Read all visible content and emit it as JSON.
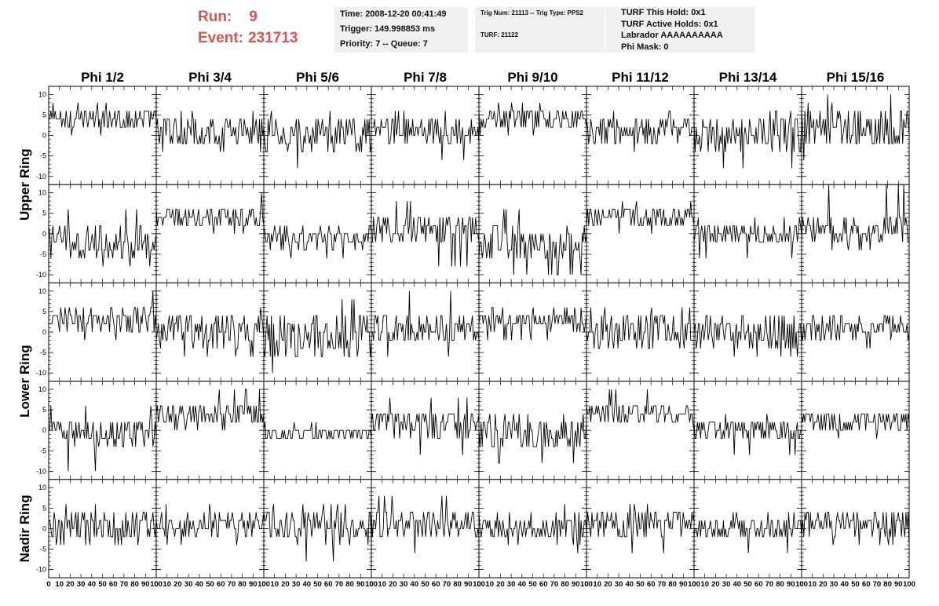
{
  "run_info": {
    "run_label": "Run:",
    "run_value": "9",
    "event_label": "Event:",
    "event_value": "231713",
    "color": "#d9534f"
  },
  "time_box": {
    "time": "Time: 2008-12-20 00:41:49",
    "trigger": "Trigger: 149.998853 ms",
    "priority": "Priority: 7 -- Queue: 7"
  },
  "trig_box": {
    "trig_line": "Trig Num: 21113 -- Trig Type: PPS2",
    "turf_line": "TURF: 21122"
  },
  "turf_box": {
    "this_hold": "TURF This Hold: 0x1",
    "active_holds": "TURF Active Holds: 0x1",
    "labrador": "Labrador AAAAAAAAAA",
    "phi_mask": "Phi Mask: 0"
  },
  "chart_data": {
    "type": "line",
    "description_rows": [
      "Upper Ring",
      "Upper Ring",
      "Lower Ring",
      "Lower Ring",
      "Nadir Ring"
    ],
    "ring_labels": [
      "Upper Ring",
      "Lower Ring",
      "Nadir Ring"
    ],
    "phi_labels": [
      "Phi 1/2",
      "Phi 3/4",
      "Phi 5/6",
      "Phi 7/8",
      "Phi 9/10",
      "Phi 11/12",
      "Phi 13/14",
      "Phi 15/16"
    ],
    "xlim": [
      0,
      100
    ],
    "ylim": [
      -12,
      12
    ],
    "x_ticks": [
      "0",
      "10",
      "20",
      "30",
      "40",
      "50",
      "60",
      "70",
      "80",
      "90",
      "100"
    ],
    "y_ticks": [
      "-10",
      "-5",
      "0",
      "5",
      "10"
    ],
    "samples_per_panel": 100,
    "series": [
      {
        "row": 0,
        "col": 0,
        "baseline": 4,
        "spread": 2,
        "min": 0,
        "max": 8
      },
      {
        "row": 0,
        "col": 1,
        "baseline": 1,
        "spread": 3,
        "min": -4,
        "max": 6
      },
      {
        "row": 0,
        "col": 2,
        "baseline": 0,
        "spread": 3.5,
        "min": -8,
        "max": 6
      },
      {
        "row": 0,
        "col": 3,
        "baseline": 1,
        "spread": 2.5,
        "min": -6,
        "max": 6
      },
      {
        "row": 0,
        "col": 4,
        "baseline": 4,
        "spread": 2,
        "min": 0,
        "max": 8
      },
      {
        "row": 0,
        "col": 5,
        "baseline": 1,
        "spread": 2.5,
        "min": -4,
        "max": 6
      },
      {
        "row": 0,
        "col": 6,
        "baseline": 0,
        "spread": 3.5,
        "min": -8,
        "max": 6
      },
      {
        "row": 0,
        "col": 7,
        "baseline": 2,
        "spread": 4,
        "min": -6,
        "max": 10
      },
      {
        "row": 1,
        "col": 0,
        "baseline": -2,
        "spread": 3,
        "min": -8,
        "max": 6
      },
      {
        "row": 1,
        "col": 1,
        "baseline": 4,
        "spread": 2,
        "min": 0,
        "max": 10
      },
      {
        "row": 1,
        "col": 2,
        "baseline": -1,
        "spread": 2,
        "min": -6,
        "max": 2
      },
      {
        "row": 1,
        "col": 3,
        "baseline": 1,
        "spread": 3,
        "min": -8,
        "max": 8
      },
      {
        "row": 1,
        "col": 4,
        "baseline": -2,
        "spread": 3,
        "min": -10,
        "max": 6
      },
      {
        "row": 1,
        "col": 5,
        "baseline": 4,
        "spread": 2,
        "min": 0,
        "max": 8
      },
      {
        "row": 1,
        "col": 6,
        "baseline": 0,
        "spread": 2,
        "min": -6,
        "max": 4
      },
      {
        "row": 1,
        "col": 7,
        "baseline": 1,
        "spread": 3,
        "min": -4,
        "max": 12
      },
      {
        "row": 2,
        "col": 0,
        "baseline": 3,
        "spread": 2.5,
        "min": -2,
        "max": 10
      },
      {
        "row": 2,
        "col": 1,
        "baseline": 0,
        "spread": 3,
        "min": -6,
        "max": 6
      },
      {
        "row": 2,
        "col": 2,
        "baseline": -1,
        "spread": 4,
        "min": -10,
        "max": 8
      },
      {
        "row": 2,
        "col": 3,
        "baseline": 1,
        "spread": 3,
        "min": -6,
        "max": 10
      },
      {
        "row": 2,
        "col": 4,
        "baseline": 3,
        "spread": 2,
        "min": -2,
        "max": 6
      },
      {
        "row": 2,
        "col": 5,
        "baseline": 0,
        "spread": 3,
        "min": -6,
        "max": 6
      },
      {
        "row": 2,
        "col": 6,
        "baseline": 0,
        "spread": 3,
        "min": -6,
        "max": 4
      },
      {
        "row": 2,
        "col": 7,
        "baseline": 1,
        "spread": 2,
        "min": -4,
        "max": 4
      },
      {
        "row": 3,
        "col": 0,
        "baseline": -1,
        "spread": 3,
        "min": -10,
        "max": 6
      },
      {
        "row": 3,
        "col": 1,
        "baseline": 4,
        "spread": 2,
        "min": 0,
        "max": 10
      },
      {
        "row": 3,
        "col": 2,
        "baseline": -1,
        "spread": 1.5,
        "min": -6,
        "max": 2
      },
      {
        "row": 3,
        "col": 3,
        "baseline": 1,
        "spread": 3,
        "min": -6,
        "max": 8
      },
      {
        "row": 3,
        "col": 4,
        "baseline": -1,
        "spread": 3,
        "min": -8,
        "max": 4
      },
      {
        "row": 3,
        "col": 5,
        "baseline": 4,
        "spread": 2,
        "min": 0,
        "max": 10
      },
      {
        "row": 3,
        "col": 6,
        "baseline": 0,
        "spread": 2,
        "min": -6,
        "max": 4
      },
      {
        "row": 3,
        "col": 7,
        "baseline": 2,
        "spread": 2,
        "min": -2,
        "max": 6
      },
      {
        "row": 4,
        "col": 0,
        "baseline": 0,
        "spread": 3,
        "min": -6,
        "max": 6
      },
      {
        "row": 4,
        "col": 1,
        "baseline": 1,
        "spread": 2,
        "min": -4,
        "max": 6
      },
      {
        "row": 4,
        "col": 2,
        "baseline": 0,
        "spread": 3,
        "min": -8,
        "max": 6
      },
      {
        "row": 4,
        "col": 3,
        "baseline": 1,
        "spread": 3,
        "min": -6,
        "max": 8
      },
      {
        "row": 4,
        "col": 4,
        "baseline": 0,
        "spread": 2.5,
        "min": -6,
        "max": 6
      },
      {
        "row": 4,
        "col": 5,
        "baseline": 1,
        "spread": 2.5,
        "min": -6,
        "max": 6
      },
      {
        "row": 4,
        "col": 6,
        "baseline": 0,
        "spread": 2,
        "min": -6,
        "max": 4
      },
      {
        "row": 4,
        "col": 7,
        "baseline": 1,
        "spread": 2,
        "min": -4,
        "max": 4
      }
    ]
  }
}
